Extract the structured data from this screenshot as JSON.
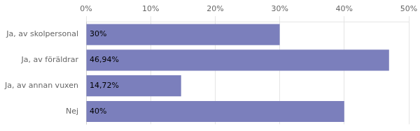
{
  "chart_data": {
    "type": "bar",
    "orientation": "horizontal",
    "categories": [
      "Ja, av skolpersonal",
      "Ja, av föräldrar",
      "Ja, av annan vuxen",
      "Nej"
    ],
    "values": [
      30.0,
      46.94,
      14.72,
      40.0
    ],
    "value_labels": [
      "30%",
      "46,94%",
      "14,72%",
      "40%"
    ],
    "data_labels": true,
    "color": "#7b7fbc",
    "xlim": [
      0,
      50
    ],
    "xticks": [
      {
        "value": 0,
        "label": "0%"
      },
      {
        "value": 10,
        "label": "10%"
      },
      {
        "value": 20,
        "label": "20%"
      },
      {
        "value": 30,
        "label": "30%"
      },
      {
        "value": 40,
        "label": "40%"
      },
      {
        "value": 50,
        "label": "50%"
      }
    ],
    "grid": true
  }
}
